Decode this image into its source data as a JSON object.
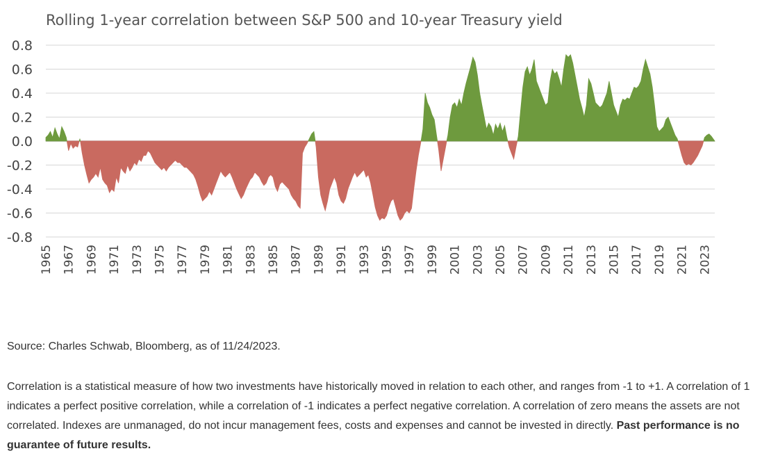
{
  "chart_data": {
    "type": "area",
    "title": "Rolling 1-year correlation between S&P 500 and 10-year Treasury yield",
    "xlabel": "",
    "ylabel": "",
    "ylim": [
      -0.8,
      0.8
    ],
    "xlim": [
      1965,
      2023.9
    ],
    "yticks": [
      "0.8",
      "0.6",
      "0.4",
      "0.2",
      "0.0",
      "-0.2",
      "-0.4",
      "-0.6",
      "-0.8"
    ],
    "xticks": [
      "1965",
      "1967",
      "1969",
      "1971",
      "1973",
      "1975",
      "1977",
      "1979",
      "1981",
      "1983",
      "1985",
      "1987",
      "1989",
      "1991",
      "1993",
      "1995",
      "1997",
      "1999",
      "2001",
      "2003",
      "2005",
      "2007",
      "2009",
      "2011",
      "2013",
      "2015",
      "2017",
      "2019",
      "2021",
      "2023"
    ],
    "grid": true,
    "colors": {
      "positive": "#6e9a3e",
      "negative": "#c96a60"
    },
    "series": [
      {
        "points": [
          [
            1965.0,
            0.03
          ],
          [
            1965.2,
            0.05
          ],
          [
            1965.4,
            0.08
          ],
          [
            1965.6,
            0.03
          ],
          [
            1965.8,
            0.11
          ],
          [
            1966.0,
            0.06
          ],
          [
            1966.2,
            0.02
          ],
          [
            1966.4,
            0.12
          ],
          [
            1966.6,
            0.08
          ],
          [
            1966.8,
            0.03
          ],
          [
            1967.0,
            -0.08
          ],
          [
            1967.2,
            -0.02
          ],
          [
            1967.4,
            -0.06
          ],
          [
            1967.6,
            -0.04
          ],
          [
            1967.8,
            -0.05
          ],
          [
            1968.0,
            0.02
          ],
          [
            1968.2,
            -0.1
          ],
          [
            1968.4,
            -0.2
          ],
          [
            1968.6,
            -0.28
          ],
          [
            1968.8,
            -0.35
          ],
          [
            1969.0,
            -0.32
          ],
          [
            1969.2,
            -0.3
          ],
          [
            1969.4,
            -0.27
          ],
          [
            1969.6,
            -0.3
          ],
          [
            1969.8,
            -0.22
          ],
          [
            1970.0,
            -0.32
          ],
          [
            1970.2,
            -0.35
          ],
          [
            1970.4,
            -0.37
          ],
          [
            1970.6,
            -0.43
          ],
          [
            1970.8,
            -0.4
          ],
          [
            1971.0,
            -0.42
          ],
          [
            1971.2,
            -0.3
          ],
          [
            1971.4,
            -0.35
          ],
          [
            1971.6,
            -0.22
          ],
          [
            1971.8,
            -0.25
          ],
          [
            1972.0,
            -0.27
          ],
          [
            1972.2,
            -0.2
          ],
          [
            1972.4,
            -0.25
          ],
          [
            1972.6,
            -0.22
          ],
          [
            1972.8,
            -0.18
          ],
          [
            1973.0,
            -0.2
          ],
          [
            1973.2,
            -0.15
          ],
          [
            1973.4,
            -0.17
          ],
          [
            1973.6,
            -0.12
          ],
          [
            1973.8,
            -0.12
          ],
          [
            1974.0,
            -0.08
          ],
          [
            1974.2,
            -0.1
          ],
          [
            1974.4,
            -0.14
          ],
          [
            1974.6,
            -0.18
          ],
          [
            1974.8,
            -0.2
          ],
          [
            1975.0,
            -0.22
          ],
          [
            1975.2,
            -0.24
          ],
          [
            1975.4,
            -0.22
          ],
          [
            1975.6,
            -0.25
          ],
          [
            1975.8,
            -0.22
          ],
          [
            1976.0,
            -0.2
          ],
          [
            1976.2,
            -0.18
          ],
          [
            1976.4,
            -0.16
          ],
          [
            1976.6,
            -0.18
          ],
          [
            1976.8,
            -0.18
          ],
          [
            1977.0,
            -0.2
          ],
          [
            1977.2,
            -0.22
          ],
          [
            1977.4,
            -0.22
          ],
          [
            1977.6,
            -0.24
          ],
          [
            1977.8,
            -0.26
          ],
          [
            1978.0,
            -0.28
          ],
          [
            1978.2,
            -0.32
          ],
          [
            1978.4,
            -0.38
          ],
          [
            1978.6,
            -0.45
          ],
          [
            1978.8,
            -0.5
          ],
          [
            1979.0,
            -0.48
          ],
          [
            1979.2,
            -0.46
          ],
          [
            1979.4,
            -0.42
          ],
          [
            1979.6,
            -0.45
          ],
          [
            1979.8,
            -0.4
          ],
          [
            1980.0,
            -0.35
          ],
          [
            1980.2,
            -0.3
          ],
          [
            1980.4,
            -0.25
          ],
          [
            1980.6,
            -0.28
          ],
          [
            1980.8,
            -0.3
          ],
          [
            1981.0,
            -0.28
          ],
          [
            1981.2,
            -0.26
          ],
          [
            1981.4,
            -0.3
          ],
          [
            1981.6,
            -0.35
          ],
          [
            1981.8,
            -0.4
          ],
          [
            1982.0,
            -0.44
          ],
          [
            1982.2,
            -0.48
          ],
          [
            1982.4,
            -0.45
          ],
          [
            1982.6,
            -0.4
          ],
          [
            1982.8,
            -0.36
          ],
          [
            1983.0,
            -0.32
          ],
          [
            1983.2,
            -0.3
          ],
          [
            1983.4,
            -0.26
          ],
          [
            1983.6,
            -0.28
          ],
          [
            1983.8,
            -0.3
          ],
          [
            1984.0,
            -0.34
          ],
          [
            1984.2,
            -0.37
          ],
          [
            1984.4,
            -0.35
          ],
          [
            1984.6,
            -0.3
          ],
          [
            1984.8,
            -0.28
          ],
          [
            1985.0,
            -0.3
          ],
          [
            1985.2,
            -0.38
          ],
          [
            1985.4,
            -0.42
          ],
          [
            1985.6,
            -0.36
          ],
          [
            1985.8,
            -0.34
          ],
          [
            1986.0,
            -0.36
          ],
          [
            1986.2,
            -0.38
          ],
          [
            1986.4,
            -0.4
          ],
          [
            1986.6,
            -0.45
          ],
          [
            1986.8,
            -0.48
          ],
          [
            1987.0,
            -0.5
          ],
          [
            1987.2,
            -0.54
          ],
          [
            1987.4,
            -0.56
          ],
          [
            1987.6,
            -0.1
          ],
          [
            1987.8,
            -0.05
          ],
          [
            1988.0,
            -0.02
          ],
          [
            1988.2,
            0.02
          ],
          [
            1988.4,
            0.06
          ],
          [
            1988.6,
            0.08
          ],
          [
            1988.8,
            -0.05
          ],
          [
            1989.0,
            -0.3
          ],
          [
            1989.2,
            -0.45
          ],
          [
            1989.4,
            -0.52
          ],
          [
            1989.6,
            -0.58
          ],
          [
            1989.8,
            -0.5
          ],
          [
            1990.0,
            -0.4
          ],
          [
            1990.2,
            -0.35
          ],
          [
            1990.4,
            -0.3
          ],
          [
            1990.6,
            -0.35
          ],
          [
            1990.8,
            -0.45
          ],
          [
            1991.0,
            -0.5
          ],
          [
            1991.2,
            -0.52
          ],
          [
            1991.4,
            -0.48
          ],
          [
            1991.6,
            -0.4
          ],
          [
            1991.8,
            -0.35
          ],
          [
            1992.0,
            -0.3
          ],
          [
            1992.2,
            -0.26
          ],
          [
            1992.4,
            -0.3
          ],
          [
            1992.6,
            -0.28
          ],
          [
            1992.8,
            -0.26
          ],
          [
            1993.0,
            -0.24
          ],
          [
            1993.2,
            -0.3
          ],
          [
            1993.4,
            -0.28
          ],
          [
            1993.6,
            -0.35
          ],
          [
            1993.8,
            -0.45
          ],
          [
            1994.0,
            -0.55
          ],
          [
            1994.2,
            -0.62
          ],
          [
            1994.4,
            -0.66
          ],
          [
            1994.6,
            -0.64
          ],
          [
            1994.8,
            -0.65
          ],
          [
            1995.0,
            -0.62
          ],
          [
            1995.2,
            -0.55
          ],
          [
            1995.4,
            -0.5
          ],
          [
            1995.6,
            -0.48
          ],
          [
            1995.8,
            -0.55
          ],
          [
            1996.0,
            -0.62
          ],
          [
            1996.2,
            -0.66
          ],
          [
            1996.4,
            -0.64
          ],
          [
            1996.6,
            -0.6
          ],
          [
            1996.8,
            -0.58
          ],
          [
            1997.0,
            -0.6
          ],
          [
            1997.2,
            -0.56
          ],
          [
            1997.4,
            -0.4
          ],
          [
            1997.6,
            -0.25
          ],
          [
            1997.8,
            -0.12
          ],
          [
            1998.0,
            -0.02
          ],
          [
            1998.2,
            0.1
          ],
          [
            1998.4,
            0.4
          ],
          [
            1998.6,
            0.32
          ],
          [
            1998.8,
            0.28
          ],
          [
            1999.0,
            0.22
          ],
          [
            1999.2,
            0.18
          ],
          [
            1999.4,
            0.05
          ],
          [
            1999.6,
            -0.08
          ],
          [
            1999.8,
            -0.25
          ],
          [
            2000.0,
            -0.15
          ],
          [
            2000.2,
            -0.05
          ],
          [
            2000.4,
            0.05
          ],
          [
            2000.6,
            0.2
          ],
          [
            2000.8,
            0.3
          ],
          [
            2001.0,
            0.32
          ],
          [
            2001.2,
            0.28
          ],
          [
            2001.4,
            0.35
          ],
          [
            2001.6,
            0.3
          ],
          [
            2001.8,
            0.4
          ],
          [
            2002.0,
            0.48
          ],
          [
            2002.2,
            0.55
          ],
          [
            2002.4,
            0.62
          ],
          [
            2002.6,
            0.7
          ],
          [
            2002.8,
            0.66
          ],
          [
            2003.0,
            0.55
          ],
          [
            2003.2,
            0.4
          ],
          [
            2003.4,
            0.3
          ],
          [
            2003.6,
            0.2
          ],
          [
            2003.8,
            0.1
          ],
          [
            2004.0,
            0.15
          ],
          [
            2004.2,
            0.12
          ],
          [
            2004.4,
            0.05
          ],
          [
            2004.6,
            0.14
          ],
          [
            2004.8,
            0.1
          ],
          [
            2005.0,
            0.15
          ],
          [
            2005.2,
            0.08
          ],
          [
            2005.4,
            0.13
          ],
          [
            2005.6,
            0.03
          ],
          [
            2005.8,
            -0.05
          ],
          [
            2006.0,
            -0.1
          ],
          [
            2006.2,
            -0.15
          ],
          [
            2006.4,
            -0.05
          ],
          [
            2006.6,
            0.04
          ],
          [
            2006.8,
            0.25
          ],
          [
            2007.0,
            0.45
          ],
          [
            2007.2,
            0.58
          ],
          [
            2007.4,
            0.62
          ],
          [
            2007.6,
            0.55
          ],
          [
            2007.8,
            0.6
          ],
          [
            2008.0,
            0.68
          ],
          [
            2008.2,
            0.5
          ],
          [
            2008.4,
            0.45
          ],
          [
            2008.6,
            0.4
          ],
          [
            2008.8,
            0.35
          ],
          [
            2009.0,
            0.3
          ],
          [
            2009.2,
            0.32
          ],
          [
            2009.4,
            0.5
          ],
          [
            2009.6,
            0.6
          ],
          [
            2009.8,
            0.56
          ],
          [
            2010.0,
            0.58
          ],
          [
            2010.2,
            0.52
          ],
          [
            2010.4,
            0.45
          ],
          [
            2010.6,
            0.6
          ],
          [
            2010.8,
            0.72
          ],
          [
            2011.0,
            0.7
          ],
          [
            2011.2,
            0.72
          ],
          [
            2011.4,
            0.65
          ],
          [
            2011.6,
            0.55
          ],
          [
            2011.8,
            0.45
          ],
          [
            2012.0,
            0.35
          ],
          [
            2012.2,
            0.28
          ],
          [
            2012.4,
            0.2
          ],
          [
            2012.6,
            0.3
          ],
          [
            2012.8,
            0.52
          ],
          [
            2013.0,
            0.48
          ],
          [
            2013.2,
            0.4
          ],
          [
            2013.4,
            0.32
          ],
          [
            2013.6,
            0.3
          ],
          [
            2013.8,
            0.28
          ],
          [
            2014.0,
            0.3
          ],
          [
            2014.2,
            0.35
          ],
          [
            2014.4,
            0.4
          ],
          [
            2014.6,
            0.5
          ],
          [
            2014.8,
            0.4
          ],
          [
            2015.0,
            0.3
          ],
          [
            2015.2,
            0.25
          ],
          [
            2015.4,
            0.2
          ],
          [
            2015.6,
            0.3
          ],
          [
            2015.8,
            0.35
          ],
          [
            2016.0,
            0.34
          ],
          [
            2016.2,
            0.36
          ],
          [
            2016.4,
            0.35
          ],
          [
            2016.6,
            0.4
          ],
          [
            2016.8,
            0.45
          ],
          [
            2017.0,
            0.44
          ],
          [
            2017.2,
            0.46
          ],
          [
            2017.4,
            0.5
          ],
          [
            2017.6,
            0.6
          ],
          [
            2017.8,
            0.68
          ],
          [
            2018.0,
            0.62
          ],
          [
            2018.2,
            0.56
          ],
          [
            2018.4,
            0.45
          ],
          [
            2018.6,
            0.3
          ],
          [
            2018.8,
            0.12
          ],
          [
            2019.0,
            0.08
          ],
          [
            2019.2,
            0.1
          ],
          [
            2019.4,
            0.12
          ],
          [
            2019.6,
            0.18
          ],
          [
            2019.8,
            0.2
          ],
          [
            2020.0,
            0.15
          ],
          [
            2020.2,
            0.1
          ],
          [
            2020.4,
            0.05
          ],
          [
            2020.6,
            0.02
          ],
          [
            2020.8,
            -0.05
          ],
          [
            2021.0,
            -0.12
          ],
          [
            2021.2,
            -0.18
          ],
          [
            2021.4,
            -0.2
          ],
          [
            2021.6,
            -0.19
          ],
          [
            2021.8,
            -0.2
          ],
          [
            2022.0,
            -0.18
          ],
          [
            2022.2,
            -0.15
          ],
          [
            2022.4,
            -0.12
          ],
          [
            2022.6,
            -0.08
          ],
          [
            2022.8,
            -0.04
          ],
          [
            2023.0,
            0.03
          ],
          [
            2023.2,
            0.05
          ],
          [
            2023.4,
            0.06
          ],
          [
            2023.6,
            0.04
          ],
          [
            2023.9,
            0.0
          ]
        ]
      }
    ]
  },
  "source_text": "Source: Charles Schwab, Bloomberg, as of 11/24/2023.",
  "note_text": "Correlation is a statistical measure of how two investments have historically moved in relation to each other, and ranges from -1 to +1. A correlation of 1 indicates a perfect positive correlation, while a correlation of -1 indicates a perfect negative correlation. A correlation of zero means the assets are not correlated. Indexes are unmanaged, do not incur management fees, costs and expenses and cannot be invested in directly. ",
  "note_bold": "Past performance is no guarantee of future results."
}
